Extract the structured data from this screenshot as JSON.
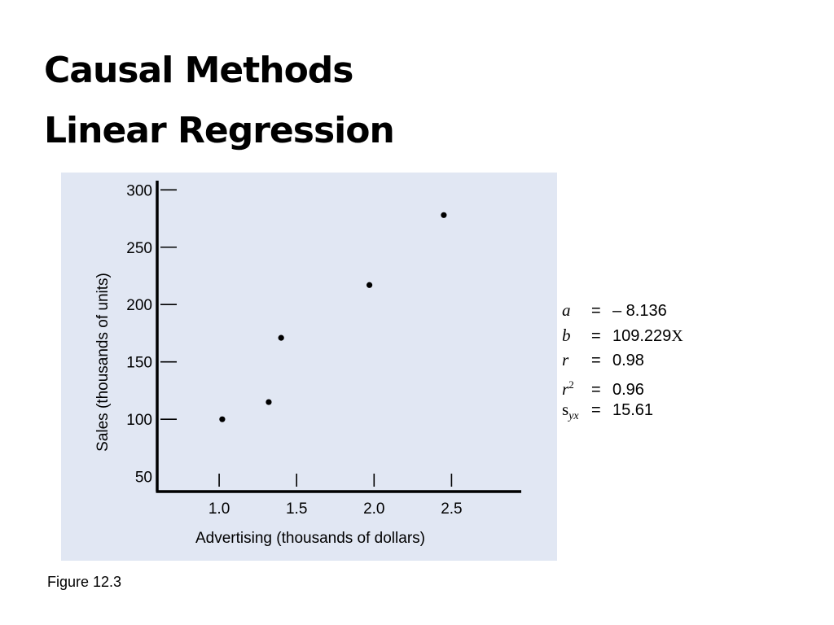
{
  "slide": {
    "title_line1": "Causal Methods",
    "title_line2": "Linear Regression",
    "caption": "Figure 12.3"
  },
  "stats": [
    {
      "symbol": "a",
      "equals": "=",
      "value": "– 8.136",
      "suffix": ""
    },
    {
      "symbol": "b",
      "equals": "=",
      "value": "109.229",
      "suffix": "X"
    },
    {
      "symbol": "r",
      "equals": "=",
      "value": "0.98",
      "suffix": ""
    },
    {
      "symbol": "r",
      "superscript": "2",
      "equals": "=",
      "value": "0.96",
      "suffix": ""
    },
    {
      "symbol": "s",
      "subscript": "yx",
      "equals": "=",
      "value": "15.61",
      "suffix": ""
    }
  ],
  "colors": {
    "panel_background": "#e1e7f3",
    "axis": "#000000",
    "points": "#000000"
  },
  "chart_data": {
    "type": "scatter",
    "xlabel": "Advertising (thousands of dollars)",
    "ylabel": "Sales (thousands of units)",
    "xticks": [
      "1.0",
      "1.5",
      "2.0",
      "2.5"
    ],
    "yticks": [
      "50",
      "100",
      "150",
      "200",
      "250",
      "300"
    ],
    "xlim": [
      0.6,
      2.95
    ],
    "ylim": [
      37,
      308
    ],
    "grid": false,
    "legend": "none",
    "points": [
      {
        "x": 1.02,
        "y": 100
      },
      {
        "x": 1.32,
        "y": 115
      },
      {
        "x": 1.4,
        "y": 171
      },
      {
        "x": 1.97,
        "y": 217
      },
      {
        "x": 2.45,
        "y": 278
      }
    ]
  }
}
